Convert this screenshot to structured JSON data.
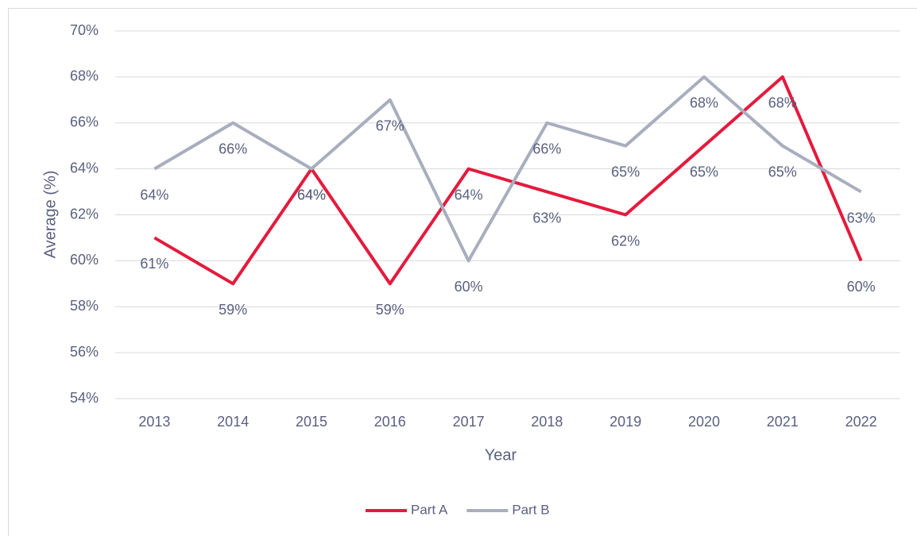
{
  "chart_data": {
    "type": "line",
    "x_label": "Year",
    "y_label": "Average (%)",
    "categories": [
      "2013",
      "2014",
      "2015",
      "2016",
      "2017",
      "2018",
      "2019",
      "2020",
      "2021",
      "2022"
    ],
    "series": [
      {
        "name": "Part A",
        "color": "#e31b3d",
        "values": [
          61,
          59,
          64,
          59,
          64,
          63,
          62,
          65,
          68,
          60
        ],
        "value_labels": [
          "61%",
          "59%",
          "64%",
          "59%",
          "64%",
          "63%",
          "62%",
          "65%",
          "68%",
          "60%"
        ]
      },
      {
        "name": "Part B",
        "color": "#a8aebd",
        "values": [
          64,
          66,
          64,
          67,
          60,
          66,
          65,
          68,
          65,
          63
        ],
        "value_labels": [
          "64%",
          "66%",
          "64%",
          "67%",
          "60%",
          "66%",
          "65%",
          "68%",
          "65%",
          "63%"
        ]
      }
    ],
    "ylim": [
      54,
      70
    ],
    "yticks": [
      {
        "value": 54,
        "label": "54%"
      },
      {
        "value": 56,
        "label": "56%"
      },
      {
        "value": 58,
        "label": "58%"
      },
      {
        "value": 60,
        "label": "60%"
      },
      {
        "value": 62,
        "label": "62%"
      },
      {
        "value": 64,
        "label": "64%"
      },
      {
        "value": 66,
        "label": "66%"
      },
      {
        "value": 68,
        "label": "68%"
      },
      {
        "value": 70,
        "label": "70%"
      }
    ],
    "grid": true,
    "legend": "bottom"
  }
}
